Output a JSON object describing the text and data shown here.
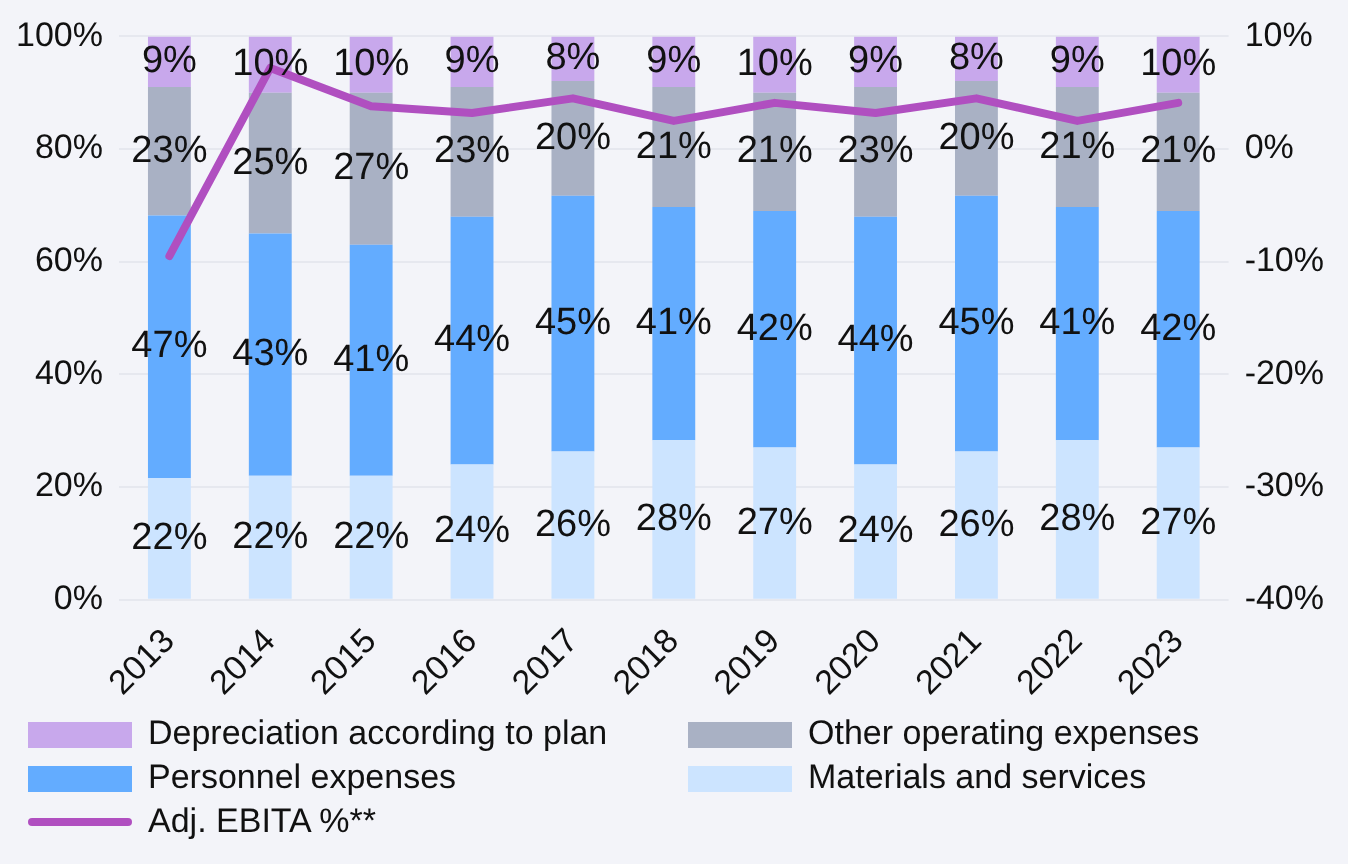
{
  "chart_data": {
    "type": "bar",
    "stacked": true,
    "categories": [
      "2013",
      "2014",
      "2015",
      "2016",
      "2017",
      "2018",
      "2019",
      "2020",
      "2021",
      "2022",
      "2023"
    ],
    "series": [
      {
        "name": "Materials and services",
        "color": "#cce4ff",
        "values": [
          21.6,
          22,
          22,
          24,
          26.3,
          28.3,
          27,
          24,
          26.3,
          28.3,
          27
        ],
        "value_labels": [
          "22%",
          "22%",
          "22%",
          "24%",
          "26%",
          "28%",
          "27%",
          "24%",
          "26%",
          "28%",
          "27%"
        ]
      },
      {
        "name": "Personnel expenses",
        "color": "#63acff",
        "values": [
          46.6,
          43,
          41,
          44,
          45.4,
          41.4,
          42,
          44,
          45.4,
          41.4,
          42
        ],
        "value_labels": [
          "47%",
          "43%",
          "41%",
          "44%",
          "45%",
          "41%",
          "42%",
          "44%",
          "45%",
          "41%",
          "42%"
        ]
      },
      {
        "name": "Other operating expenses",
        "color": "#a9b1c4",
        "values": [
          22.8,
          25,
          27,
          23,
          20.4,
          21.3,
          21,
          23,
          20.4,
          21.3,
          21
        ],
        "value_labels": [
          "23%",
          "25%",
          "27%",
          "23%",
          "20%",
          "21%",
          "21%",
          "23%",
          "20%",
          "21%",
          "21%"
        ]
      },
      {
        "name": "Depreciation according to plan",
        "color": "#c8a8ec",
        "values": [
          9,
          10,
          10,
          9,
          7.9,
          9,
          10,
          9,
          7.9,
          9,
          10
        ],
        "value_labels": [
          "9%",
          "10%",
          "10%",
          "9%",
          "8%",
          "9%",
          "10%",
          "9%",
          "8%",
          "9%",
          "10%"
        ]
      },
      {
        "name": "Adj. EBITA %**",
        "type": "line",
        "axis": "y2",
        "color": "#b04fc0",
        "values": [
          -9.5,
          7.2,
          3.8,
          3.2,
          4.5,
          2.5,
          4.1,
          3.2,
          4.5,
          2.5,
          4.1
        ]
      }
    ],
    "ylim": [
      0,
      100
    ],
    "yticks": [
      {
        "value": 0,
        "label": "0%"
      },
      {
        "value": 20,
        "label": "20%"
      },
      {
        "value": 40,
        "label": "40%"
      },
      {
        "value": 60,
        "label": "60%"
      },
      {
        "value": 80,
        "label": "80%"
      },
      {
        "value": 100,
        "label": "100%"
      }
    ],
    "y2lim": [
      -40,
      10
    ],
    "y2ticks": [
      {
        "value": -40,
        "label": "-40%"
      },
      {
        "value": -30,
        "label": "-30%"
      },
      {
        "value": -20,
        "label": "-20%"
      },
      {
        "value": -10,
        "label": "-10%"
      },
      {
        "value": 0,
        "label": "0%"
      },
      {
        "value": 10,
        "label": "10%"
      }
    ],
    "grid": "y",
    "legend": "bottom",
    "marker": "none",
    "line_style": "solid"
  }
}
